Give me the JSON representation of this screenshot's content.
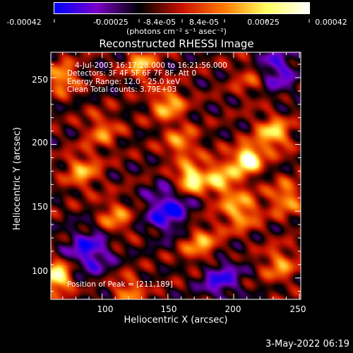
{
  "colorbar": {
    "ticks": [
      "-0.00042",
      "-0.00025",
      "-8.4e-05",
      "8.4e-05",
      "0.00025",
      "0.00042"
    ],
    "unit_label": "(photons cm⁻² s⁻¹ asec⁻²)",
    "colors": [
      "#0000ff",
      "#7a00c8",
      "#000000",
      "#c81000",
      "#ff7a00",
      "#ffff60",
      "#ffffff"
    ]
  },
  "chart_data": {
    "type": "heatmap",
    "title": "Reconstructed RHESSI Image",
    "xlabel": "Heliocentric X (arcsec)",
    "ylabel": "Heliocentric Y (arcsec)",
    "xlim": [
      61,
      251
    ],
    "ylim": [
      84,
      269
    ],
    "xticks": [
      100,
      150,
      200,
      250
    ],
    "yticks": [
      100,
      150,
      200,
      250
    ],
    "info_lines": [
      "4-Jul-2003 16:17:28.000 to 16:21:56.000",
      "Detectors: 3F 4F 5F 6F 7F 8F, Att 0",
      "Energy Range: 12.0 - 25.0 keV",
      "Clean     Total counts: 3.79E+03"
    ],
    "peak_label": "Position of Peak = [211,189]",
    "peak": [
      211,
      189
    ],
    "sources": [
      {
        "x": 211,
        "y": 189,
        "amp": 1.0,
        "sigma": 7
      },
      {
        "x": 167,
        "y": 174,
        "amp": 0.85,
        "sigma": 7
      },
      {
        "x": 66,
        "y": 101,
        "amp": 0.85,
        "sigma": 8
      },
      {
        "x": 230,
        "y": 208,
        "amp": 0.65,
        "sigma": 9
      },
      {
        "x": 190,
        "y": 175,
        "amp": 0.6,
        "sigma": 10
      },
      {
        "x": 205,
        "y": 150,
        "amp": 0.55,
        "sigma": 10
      },
      {
        "x": 240,
        "y": 160,
        "amp": 0.5,
        "sigma": 9
      },
      {
        "x": 150,
        "y": 230,
        "amp": 0.55,
        "sigma": 9
      },
      {
        "x": 130,
        "y": 260,
        "amp": 0.55,
        "sigma": 8
      },
      {
        "x": 85,
        "y": 180,
        "amp": 0.5,
        "sigma": 9
      },
      {
        "x": 110,
        "y": 145,
        "amp": 0.45,
        "sigma": 9
      },
      {
        "x": 70,
        "y": 250,
        "amp": 0.55,
        "sigma": 8
      },
      {
        "x": 175,
        "y": 125,
        "amp": 0.5,
        "sigma": 10
      },
      {
        "x": 235,
        "y": 110,
        "amp": 0.45,
        "sigma": 9
      },
      {
        "x": 120,
        "y": 90,
        "amp": 0.45,
        "sigma": 8
      },
      {
        "x": 100,
        "y": 210,
        "amp": 0.4,
        "sigma": 9
      },
      {
        "x": 215,
        "y": 250,
        "amp": 0.4,
        "sigma": 10
      },
      {
        "x": 160,
        "y": 200,
        "amp": 0.45,
        "sigma": 9
      },
      {
        "x": 90,
        "y": 120,
        "amp": -0.5,
        "sigma": 12
      },
      {
        "x": 150,
        "y": 150,
        "amp": -0.55,
        "sigma": 12
      },
      {
        "x": 230,
        "y": 255,
        "amp": -0.5,
        "sigma": 12
      },
      {
        "x": 190,
        "y": 100,
        "amp": -0.45,
        "sigma": 11
      }
    ]
  },
  "footer": {
    "date": "3-May-2022 06:19"
  }
}
